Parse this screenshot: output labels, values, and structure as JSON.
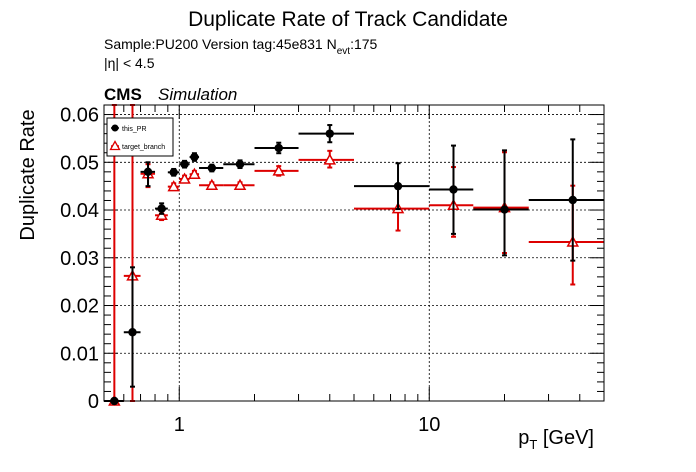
{
  "chart_data": {
    "type": "scatter",
    "title": "Duplicate Rate of Track Candidate",
    "subtitle_sample": "Sample:PU200   Version tag:45e831  N",
    "subtitle_evt_sub": "evt",
    "subtitle_evt_val": ":175",
    "eta_label": "|η| < 4.5",
    "cms_label": "CMS",
    "sim_label": "Simulation",
    "ylabel": "Duplicate Rate",
    "xlabel_main": "p",
    "xlabel_sub": "T",
    "xlabel_unit": " [GeV]",
    "x_scale": "log",
    "xlim": [
      0.5,
      50
    ],
    "ylim": [
      0,
      0.062
    ],
    "grid": true,
    "legend_position": "top-left",
    "y_ticks": [
      {
        "value": 0,
        "label": "0"
      },
      {
        "value": 0.01,
        "label": "0.01"
      },
      {
        "value": 0.02,
        "label": "0.02"
      },
      {
        "value": 0.03,
        "label": "0.03"
      },
      {
        "value": 0.04,
        "label": "0.04"
      },
      {
        "value": 0.05,
        "label": "0.05"
      },
      {
        "value": 0.06,
        "label": "0.06"
      }
    ],
    "x_ticks": [
      {
        "value": 1,
        "label": "1"
      },
      {
        "value": 10,
        "label": "10"
      }
    ],
    "series": [
      {
        "name": "this_PR",
        "color": "#000000",
        "marker": "filled-circle",
        "points": [
          {
            "x": 0.55,
            "xlo": 0.5,
            "xhi": 0.6,
            "y": 0.0,
            "ylo": 0.0,
            "yhi": 0.0
          },
          {
            "x": 0.65,
            "xlo": 0.6,
            "xhi": 0.7,
            "y": 0.0144,
            "ylo": 0.003,
            "yhi": 0.028
          },
          {
            "x": 0.75,
            "xlo": 0.7,
            "xhi": 0.8,
            "y": 0.048,
            "ylo": 0.045,
            "yhi": 0.05
          },
          {
            "x": 0.85,
            "xlo": 0.8,
            "xhi": 0.9,
            "y": 0.0403,
            "ylo": 0.0392,
            "yhi": 0.0414
          },
          {
            "x": 0.95,
            "xlo": 0.9,
            "xhi": 1.0,
            "y": 0.0479,
            "ylo": 0.0472,
            "yhi": 0.0486
          },
          {
            "x": 1.05,
            "xlo": 1.0,
            "xhi": 1.1,
            "y": 0.0496,
            "ylo": 0.0489,
            "yhi": 0.0503
          },
          {
            "x": 1.15,
            "xlo": 1.1,
            "xhi": 1.2,
            "y": 0.0511,
            "ylo": 0.0503,
            "yhi": 0.0519
          },
          {
            "x": 1.35,
            "xlo": 1.2,
            "xhi": 1.5,
            "y": 0.0488,
            "ylo": 0.0481,
            "yhi": 0.0495
          },
          {
            "x": 1.75,
            "xlo": 1.5,
            "xhi": 2.0,
            "y": 0.0496,
            "ylo": 0.0488,
            "yhi": 0.0504
          },
          {
            "x": 2.5,
            "xlo": 2.0,
            "xhi": 3.0,
            "y": 0.053,
            "ylo": 0.0519,
            "yhi": 0.0541
          },
          {
            "x": 4.0,
            "xlo": 3.0,
            "xhi": 5.0,
            "y": 0.056,
            "ylo": 0.0542,
            "yhi": 0.0578
          },
          {
            "x": 7.5,
            "xlo": 5.0,
            "xhi": 10.0,
            "y": 0.045,
            "ylo": 0.0402,
            "yhi": 0.0498
          },
          {
            "x": 12.5,
            "xlo": 10.0,
            "xhi": 15.0,
            "y": 0.0443,
            "ylo": 0.035,
            "yhi": 0.0535
          },
          {
            "x": 20.0,
            "xlo": 15.0,
            "xhi": 25.0,
            "y": 0.0401,
            "ylo": 0.0305,
            "yhi": 0.0525
          },
          {
            "x": 37.5,
            "xlo": 25.0,
            "xhi": 50.0,
            "y": 0.0421,
            "ylo": 0.0294,
            "yhi": 0.0548
          }
        ]
      },
      {
        "name": "target_branch",
        "color": "#dd0000",
        "marker": "open-triangle",
        "points": [
          {
            "x": 0.55,
            "xlo": 0.5,
            "xhi": 0.6,
            "y": 0.0,
            "ylo": 0.0,
            "yhi": 0.062
          },
          {
            "x": 0.65,
            "xlo": 0.6,
            "xhi": 0.7,
            "y": 0.0262,
            "ylo": 0.0,
            "yhi": 0.062
          },
          {
            "x": 0.75,
            "xlo": 0.7,
            "xhi": 0.8,
            "y": 0.0476,
            "ylo": 0.0448,
            "yhi": 0.0496
          },
          {
            "x": 0.85,
            "xlo": 0.8,
            "xhi": 0.9,
            "y": 0.0389,
            "ylo": 0.0379,
            "yhi": 0.0399
          },
          {
            "x": 0.95,
            "xlo": 0.9,
            "xhi": 1.0,
            "y": 0.0449,
            "ylo": 0.0442,
            "yhi": 0.0456
          },
          {
            "x": 1.05,
            "xlo": 1.0,
            "xhi": 1.1,
            "y": 0.0465,
            "ylo": 0.0458,
            "yhi": 0.0472
          },
          {
            "x": 1.15,
            "xlo": 1.1,
            "xhi": 1.2,
            "y": 0.0475,
            "ylo": 0.0468,
            "yhi": 0.0482
          },
          {
            "x": 1.35,
            "xlo": 1.2,
            "xhi": 1.5,
            "y": 0.0452,
            "ylo": 0.0446,
            "yhi": 0.0458
          },
          {
            "x": 1.75,
            "xlo": 1.5,
            "xhi": 2.0,
            "y": 0.0452,
            "ylo": 0.0446,
            "yhi": 0.0458
          },
          {
            "x": 2.5,
            "xlo": 2.0,
            "xhi": 3.0,
            "y": 0.0482,
            "ylo": 0.0472,
            "yhi": 0.0492
          },
          {
            "x": 4.0,
            "xlo": 3.0,
            "xhi": 5.0,
            "y": 0.0505,
            "ylo": 0.0489,
            "yhi": 0.0524
          },
          {
            "x": 7.5,
            "xlo": 5.0,
            "xhi": 10.0,
            "y": 0.0403,
            "ylo": 0.0357,
            "yhi": 0.0449
          },
          {
            "x": 12.5,
            "xlo": 10.0,
            "xhi": 15.0,
            "y": 0.041,
            "ylo": 0.0344,
            "yhi": 0.049
          },
          {
            "x": 20.0,
            "xlo": 15.0,
            "xhi": 25.0,
            "y": 0.0405,
            "ylo": 0.031,
            "yhi": 0.0521
          },
          {
            "x": 37.5,
            "xlo": 25.0,
            "xhi": 50.0,
            "y": 0.0333,
            "ylo": 0.0244,
            "yhi": 0.0451
          }
        ]
      }
    ]
  }
}
